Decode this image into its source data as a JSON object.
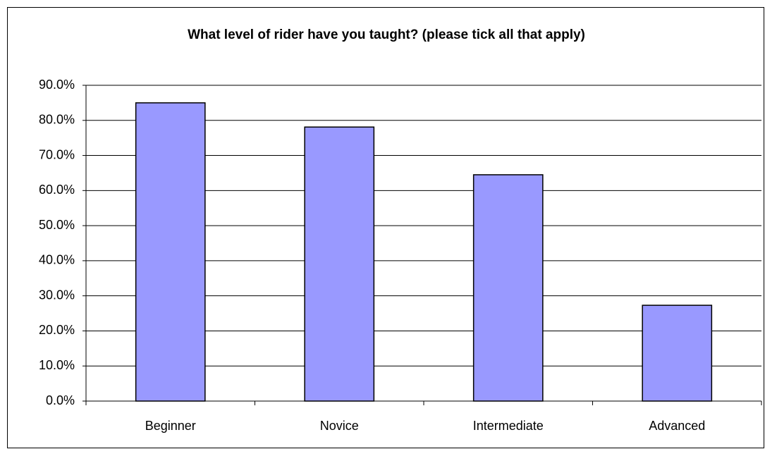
{
  "chart_data": {
    "type": "bar",
    "title": "What level of rider have you taught? (please tick all that apply)",
    "categories": [
      "Beginner",
      "Novice",
      "Intermediate",
      "Advanced"
    ],
    "values": [
      85.0,
      78.1,
      64.5,
      27.3
    ],
    "color": "#9999ff",
    "ylim": [
      0,
      90
    ],
    "yticks": [
      {
        "value": 0,
        "label": "0.0%"
      },
      {
        "value": 10,
        "label": "10.0%"
      },
      {
        "value": 20,
        "label": "20.0%"
      },
      {
        "value": 30,
        "label": "30.0%"
      },
      {
        "value": 40,
        "label": "40.0%"
      },
      {
        "value": 50,
        "label": "50.0%"
      },
      {
        "value": 60,
        "label": "60.0%"
      },
      {
        "value": 70,
        "label": "70.0%"
      },
      {
        "value": 80,
        "label": "80.0%"
      },
      {
        "value": 90,
        "label": "90.0%"
      }
    ],
    "grid": true
  }
}
